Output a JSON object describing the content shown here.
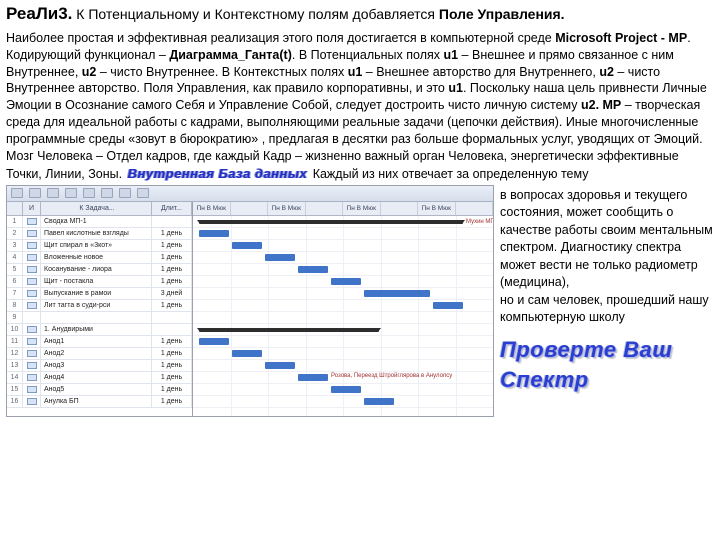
{
  "title_prefix": "РеаЛи3.",
  "title_rest": " К Потенциальному и Контекстному полям добавляется ",
  "title_suffix": "Поле Управления.",
  "paragraph_html": "Наиболее простая и эффективная  реализация этого поля достигается в компьютерной среде <b>Microsoft Project - MP</b>. Кодирующий функционал – <b>Диаграмма_Ганта(t)</b>. В Потенциальных полях <b>u1</b> – Внешнее и прямо связанное с ним Внутреннее, <b>u2</b> – чисто Внутреннее. В Контекстных полях <b>u1</b> – Внешнее авторство для Внутреннего, <b>u2</b> – чисто Внутреннее авторство. Поля Управления, как правило корпоративны,  и это <b>u1</b>. Поскольку наша цель привнести Личные Эмоции в Осознание самого Себя и Управление Собой, следует достроить чисто личную систему <b>u2. MP</b> – творческая среда для идеальной работы с кадрами, выполняющими реальные задачи (цепочки действия). Иные многочисленные программные среды «зовут в бюрократию» , предлагая в десятки раз больше формальных услуг, уводящих от Эмоций.  Мозг Человека – Отдел кадров, где каждый Кадр – жизненно важный орган Человека, энергетически эффективные Точки, Линии, Зоны. ",
  "decor_inline": "Внутренная База данных",
  "paragraph_tail": "  Каждый из них отвечает за определенную тему",
  "side_text": "в вопросах здоровья и текущего состояния, может сообщить о качестве работы своим ментальным спектром. Диагностику спектра может вести не только радиометр (медицина),\nно и сам человек, прошедший нашу компьютерную школу",
  "big_decor": "Проверте Ваш Спектр",
  "gantt": {
    "timeline_labels": [
      "Пн В Мюк",
      "",
      "Пн В Мюк",
      "",
      "Пн В Мюк",
      "",
      "Пн В Мюк",
      ""
    ],
    "rows": [
      {
        "id": "1",
        "ind": true,
        "name": "Сводка МП-1",
        "dur": "",
        "bar": {
          "l": 2,
          "w": 88,
          "sum": true,
          "label": "Мухин МП, ДюкановскийЭноденАнупрефомекол"
        }
      },
      {
        "id": "2",
        "ind": true,
        "name": "Павел кислотные взгляды",
        "dur": "1 день",
        "bar": {
          "l": 2,
          "w": 10
        }
      },
      {
        "id": "3",
        "ind": true,
        "name": "Щит спирал в «3кот»",
        "dur": "1 день",
        "bar": {
          "l": 13,
          "w": 10
        }
      },
      {
        "id": "4",
        "ind": true,
        "name": "Вложенные новое",
        "dur": "1 день",
        "bar": {
          "l": 24,
          "w": 10
        }
      },
      {
        "id": "5",
        "ind": true,
        "name": "Косанувание - лиора",
        "dur": "1 день",
        "bar": {
          "l": 35,
          "w": 10
        }
      },
      {
        "id": "6",
        "ind": true,
        "name": "Щит - постакла",
        "dur": "1 день",
        "bar": {
          "l": 46,
          "w": 10
        }
      },
      {
        "id": "7",
        "ind": true,
        "name": "Выпускание в рамои",
        "dur": "3 дней",
        "bar": {
          "l": 57,
          "w": 22
        }
      },
      {
        "id": "8",
        "ind": true,
        "name": "Лит тагта в суди-рси",
        "dur": "1 день",
        "bar": {
          "l": 80,
          "w": 10
        }
      },
      {
        "id": "9",
        "ind": false,
        "name": "",
        "dur": "",
        "bar": null
      },
      {
        "id": "10",
        "ind": true,
        "name": "1. Анудвирыми",
        "dur": "",
        "bar": {
          "l": 2,
          "w": 60,
          "sum": true
        }
      },
      {
        "id": "11",
        "ind": true,
        "name": "Анод1",
        "dur": "1 день",
        "bar": {
          "l": 2,
          "w": 10
        }
      },
      {
        "id": "12",
        "ind": true,
        "name": "Анод2",
        "dur": "1 день",
        "bar": {
          "l": 13,
          "w": 10
        }
      },
      {
        "id": "13",
        "ind": true,
        "name": "Анод3",
        "dur": "1 день",
        "bar": {
          "l": 24,
          "w": 10
        }
      },
      {
        "id": "14",
        "ind": true,
        "name": "Анод4",
        "dur": "1 день",
        "bar": {
          "l": 35,
          "w": 10,
          "label": "Розова, Переезд Штройглярова в Анулопсу"
        }
      },
      {
        "id": "15",
        "ind": true,
        "name": "Анод5",
        "dur": "1 день",
        "bar": {
          "l": 46,
          "w": 10
        }
      },
      {
        "id": "16",
        "ind": true,
        "name": "Анулка БП",
        "dur": "1 день",
        "bar": {
          "l": 57,
          "w": 10
        }
      }
    ]
  },
  "colors": {
    "bar": "#3f74c9",
    "summary_bar": "#2d2d2d",
    "toolbar_bg": "#e0e7f2",
    "grid": "#edf0f6",
    "decor_text": "#2a3fd0"
  }
}
